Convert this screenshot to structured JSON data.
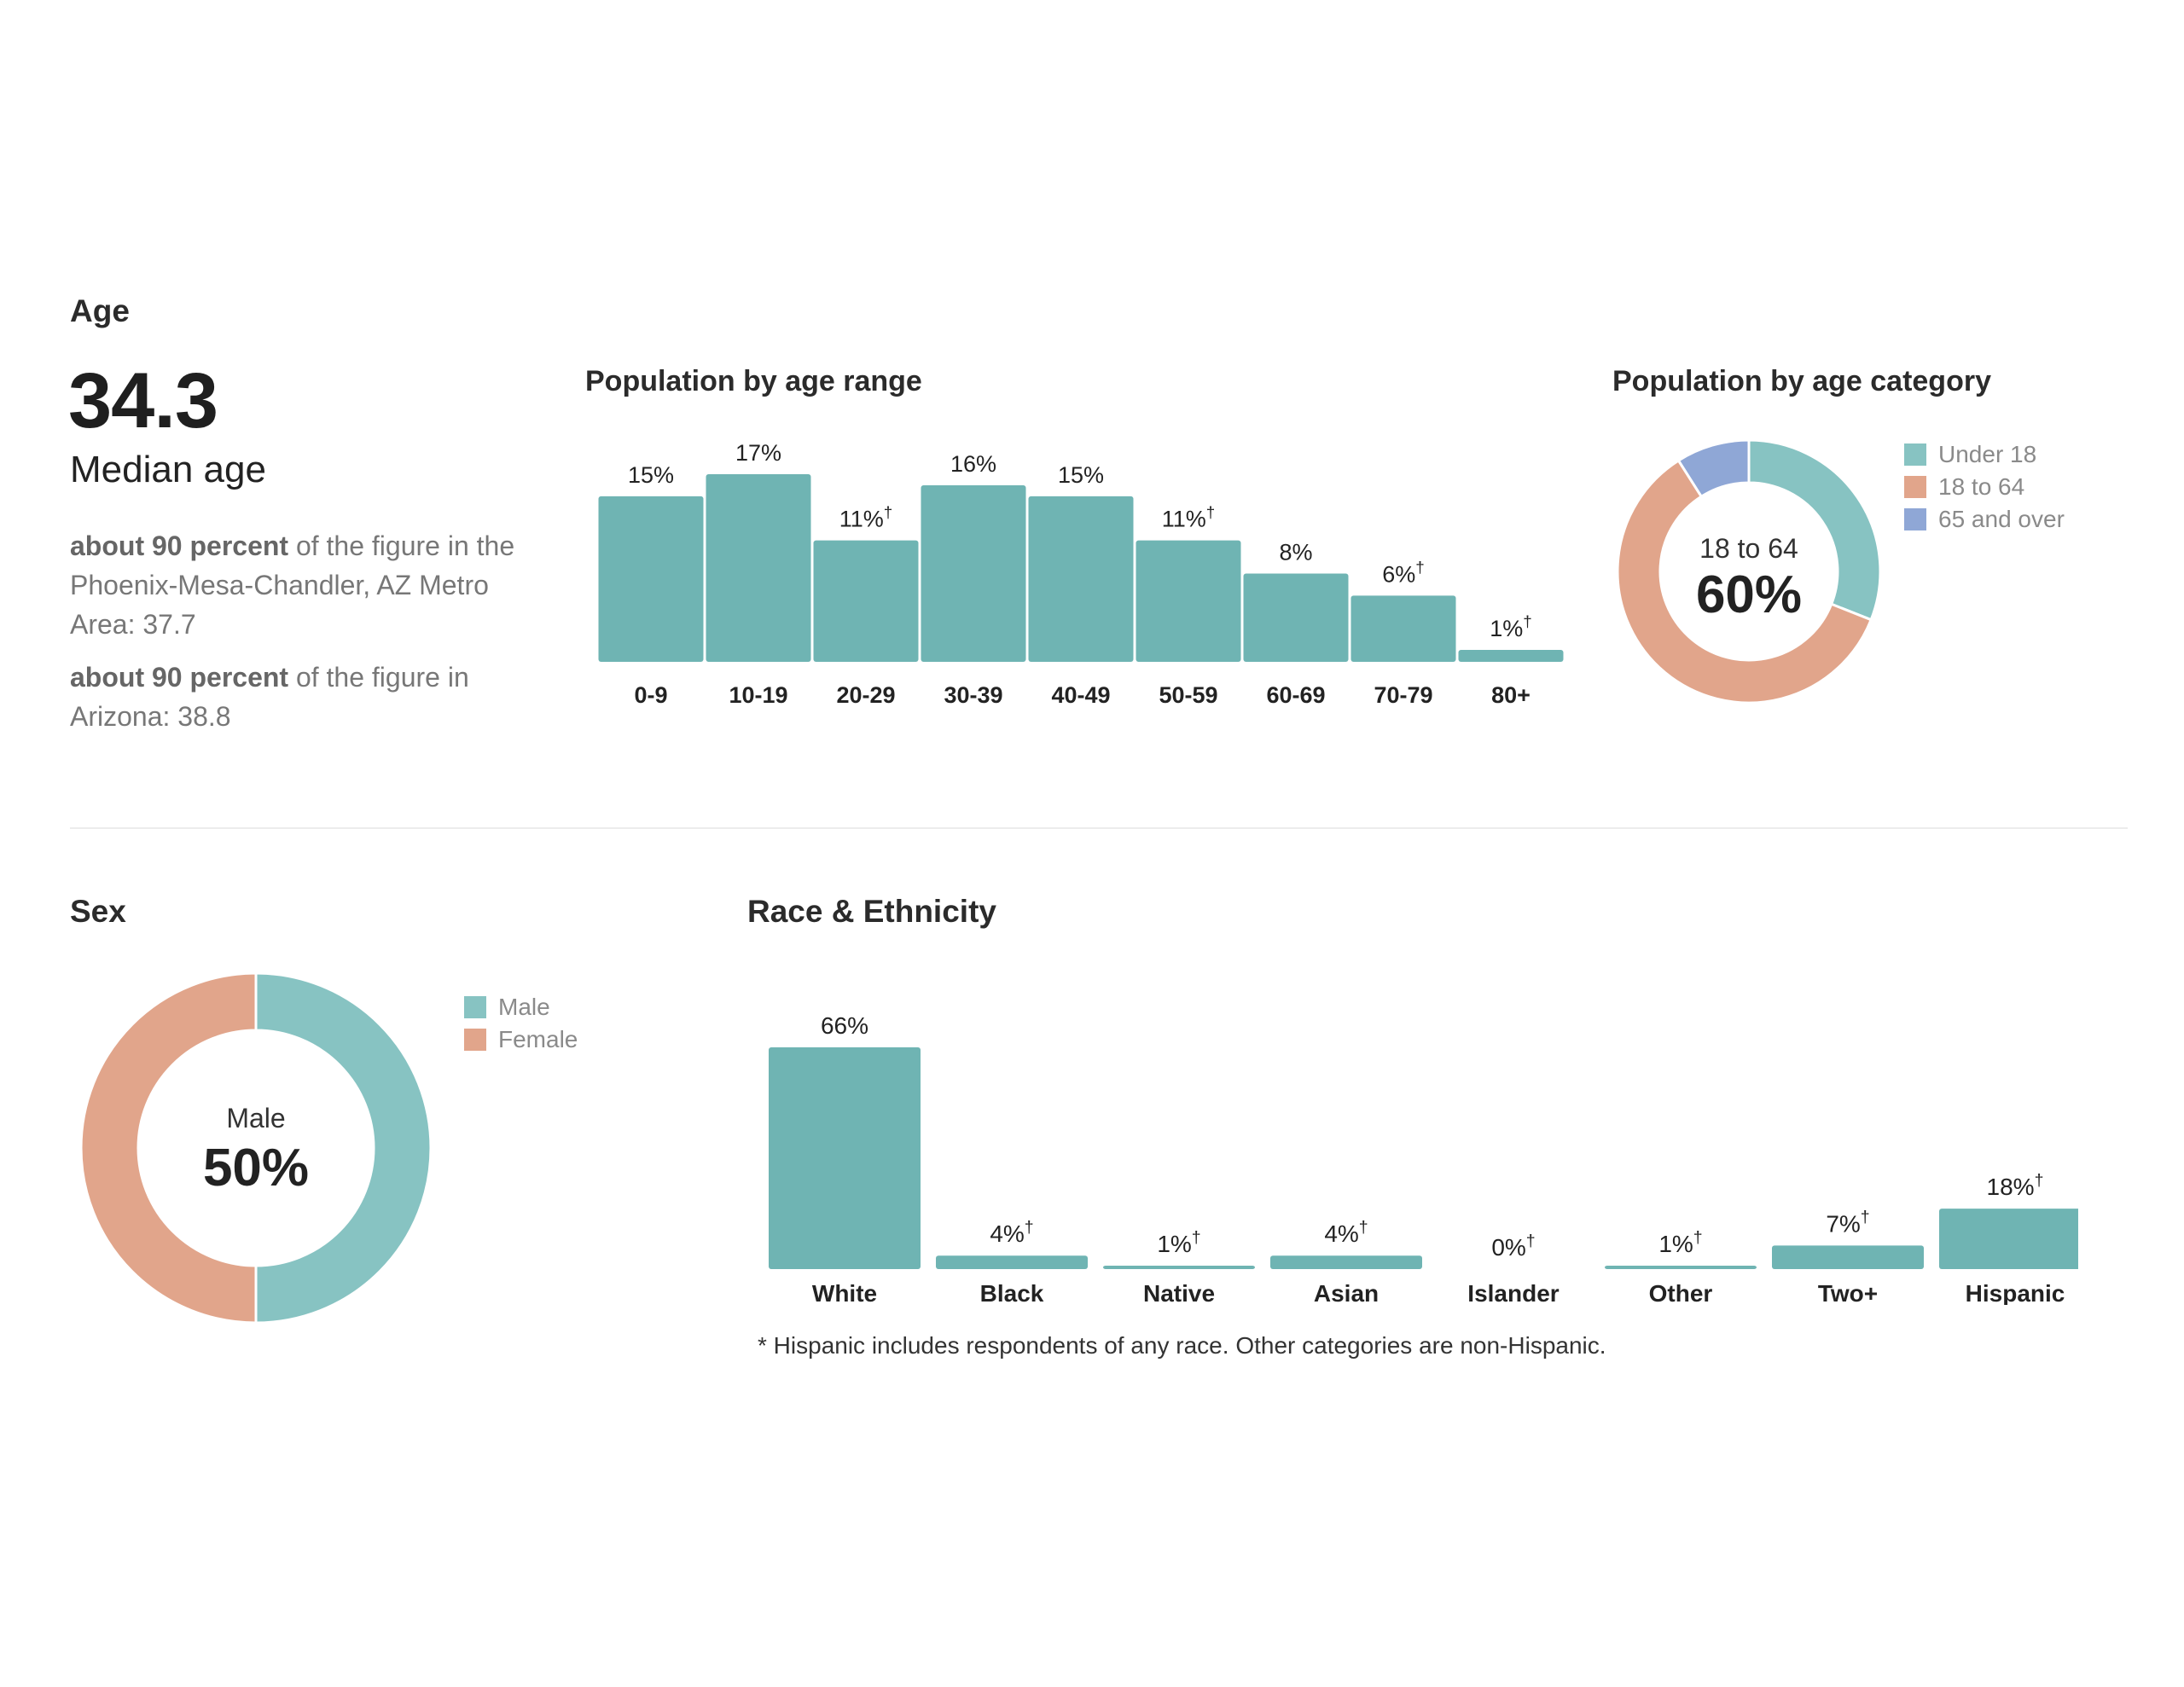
{
  "age": {
    "section_title": "Age",
    "median_value": "34.3",
    "median_label": "Median age",
    "compare1_bold": "about 90 percent",
    "compare1_rest": " of the figure in the Phoenix-Mesa-Chandler, AZ Metro Area: 37.7",
    "compare2_bold": "about 90 percent",
    "compare2_rest": " of the figure in Arizona: 38.8"
  },
  "sex": {
    "section_title": "Sex"
  },
  "race": {
    "section_title": "Race & Ethnicity",
    "footnote": "* Hispanic includes respondents of any race. Other categories are non-Hispanic."
  },
  "colors": {
    "teal_bar": "#6fb4b3",
    "teal_slice": "#87c3c2",
    "salmon": "#e1a58b",
    "blue": "#8fa7d6"
  },
  "chart_data": [
    {
      "id": "age-range",
      "type": "bar",
      "title": "Population by age range",
      "categories": [
        "0-9",
        "10-19",
        "20-29",
        "30-39",
        "40-49",
        "50-59",
        "60-69",
        "70-79",
        "80+"
      ],
      "values": [
        15,
        17,
        11,
        16,
        15,
        11,
        8,
        6,
        1
      ],
      "labels": [
        "15%",
        "17%",
        "11%",
        "16%",
        "15%",
        "11%",
        "8%",
        "6%",
        "1%"
      ],
      "dagger": [
        false,
        false,
        true,
        false,
        false,
        true,
        false,
        true,
        true
      ],
      "ylim": [
        0,
        17
      ]
    },
    {
      "id": "age-category",
      "type": "pie",
      "title": "Population by age category",
      "categories": [
        "Under 18",
        "18 to 64",
        "65 and over"
      ],
      "values": [
        31,
        60,
        9
      ],
      "center_label": "18 to 64",
      "center_value": "60%",
      "legend_position": "right"
    },
    {
      "id": "sex",
      "type": "pie",
      "title": "",
      "categories": [
        "Male",
        "Female"
      ],
      "values": [
        50,
        50
      ],
      "center_label": "Male",
      "center_value": "50%",
      "legend_position": "right"
    },
    {
      "id": "race",
      "type": "bar",
      "title": "",
      "categories": [
        "White",
        "Black",
        "Native",
        "Asian",
        "Islander",
        "Other",
        "Two+",
        "Hispanic"
      ],
      "values": [
        66,
        4,
        1,
        4,
        0,
        1,
        7,
        18
      ],
      "labels": [
        "66%",
        "4%",
        "1%",
        "4%",
        "0%",
        "1%",
        "7%",
        "18%"
      ],
      "dagger": [
        false,
        true,
        true,
        true,
        true,
        true,
        true,
        true
      ],
      "ylim": [
        0,
        66
      ]
    }
  ]
}
